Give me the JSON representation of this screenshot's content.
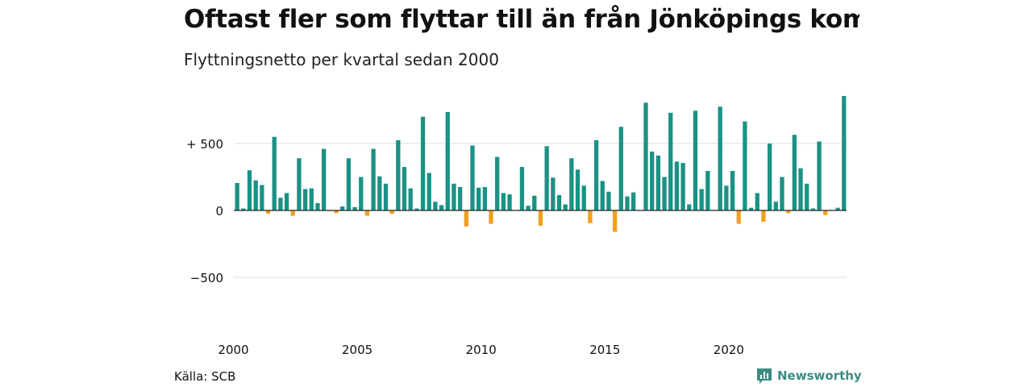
{
  "chart_data": {
    "type": "bar",
    "title": "Oftast fler som flyttar till än från Jönköpings kommun",
    "subtitle": "Flyttningsnetto per kvartal sedan 2000",
    "xlabel": "",
    "ylabel": "",
    "ylim": [
      -900,
      900
    ],
    "yticks": [
      {
        "value": 500,
        "label": "+ 500"
      },
      {
        "value": 0,
        "label": "0"
      },
      {
        "value": -500,
        "label": "−500"
      }
    ],
    "xticks": [
      "2000",
      "2005",
      "2010",
      "2015",
      "2020"
    ],
    "x_start_year": 2000,
    "colors": {
      "positive": "#1a9285",
      "negative": "#f0a020"
    },
    "grid": true,
    "values": [
      205,
      15,
      300,
      225,
      190,
      -25,
      550,
      95,
      130,
      -40,
      390,
      160,
      165,
      55,
      460,
      -5,
      -20,
      30,
      390,
      25,
      250,
      -40,
      460,
      255,
      200,
      -25,
      525,
      325,
      165,
      15,
      700,
      280,
      65,
      40,
      735,
      200,
      175,
      -120,
      485,
      170,
      175,
      -100,
      400,
      130,
      120,
      0,
      325,
      35,
      110,
      -115,
      480,
      245,
      115,
      45,
      390,
      305,
      185,
      -95,
      525,
      220,
      140,
      -160,
      625,
      105,
      135,
      0,
      805,
      440,
      410,
      250,
      730,
      365,
      355,
      45,
      745,
      160,
      295,
      0,
      775,
      185,
      295,
      -100,
      665,
      20,
      130,
      -85,
      500,
      65,
      250,
      -20,
      565,
      315,
      200,
      15,
      515,
      -35,
      0,
      20,
      855
    ]
  },
  "footer": {
    "source": "Källa: SCB",
    "brand": "Newsworthy",
    "brand_color": "#3c8d83",
    "brand_icon": "bar-chart-logo-icon"
  }
}
